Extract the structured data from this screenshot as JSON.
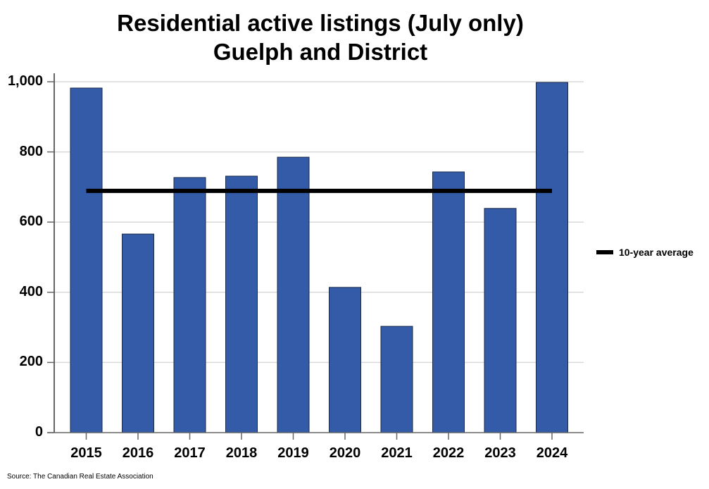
{
  "chart_data": {
    "type": "bar",
    "title": "Residential active listings (July only)",
    "subtitle": "Guelph and District",
    "xlabel": "",
    "ylabel": "",
    "categories": [
      "2015",
      "2016",
      "2017",
      "2018",
      "2019",
      "2020",
      "2021",
      "2022",
      "2023",
      "2024"
    ],
    "series": [
      {
        "name": "Active listings",
        "type": "bar",
        "color": "#335BA8",
        "values": [
          982,
          566,
          727,
          731,
          785,
          414,
          303,
          743,
          639,
          998
        ]
      },
      {
        "name": "10-year average",
        "type": "line",
        "color": "#000000",
        "values": [
          689,
          689,
          689,
          689,
          689,
          689,
          689,
          689,
          689,
          689
        ]
      }
    ],
    "ylim": [
      0,
      1000
    ],
    "yticks": [
      0,
      200,
      400,
      600,
      800,
      1000
    ],
    "ytick_labels": [
      "0",
      "200",
      "400",
      "600",
      "800",
      "1,000"
    ],
    "grid": true,
    "legend_position": "right",
    "annotations": [
      "Source: The Canadian Real Estate Association"
    ]
  },
  "header": {
    "title": "Residential active listings (July only)",
    "subtitle": "Guelph and District"
  },
  "legend": {
    "label": "10-year average"
  },
  "footer": {
    "source": "Source: The Canadian Real Estate Association"
  },
  "colors": {
    "bar": "#335BA8",
    "bar_border": "#1a2a4a",
    "average_line": "#000000",
    "grid": "#d9d9d9"
  }
}
